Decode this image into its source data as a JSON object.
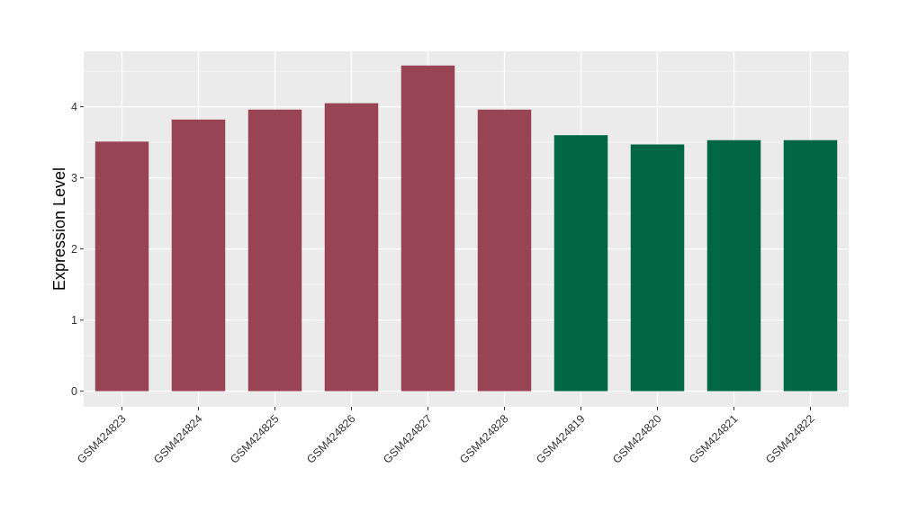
{
  "chart_data": {
    "type": "bar",
    "title": "",
    "xlabel": "",
    "ylabel": "Expression Level",
    "categories": [
      "GSM424823",
      "GSM424824",
      "GSM424825",
      "GSM424826",
      "GSM424827",
      "GSM424828",
      "GSM424819",
      "GSM424820",
      "GSM424821",
      "GSM424822"
    ],
    "values": [
      3.51,
      3.82,
      3.96,
      4.05,
      4.58,
      3.96,
      3.6,
      3.47,
      3.53,
      3.53
    ],
    "bar_colors": [
      "#994455",
      "#994455",
      "#994455",
      "#994455",
      "#994455",
      "#994455",
      "#006644",
      "#006644",
      "#006644",
      "#006644"
    ],
    "yticks": [
      0,
      1,
      2,
      3,
      4
    ],
    "ylim": [
      -0.22,
      4.78
    ],
    "grid": true,
    "legend": "none",
    "panel_background": "#EBEBEB",
    "gridline_color": "#FFFFFF"
  }
}
